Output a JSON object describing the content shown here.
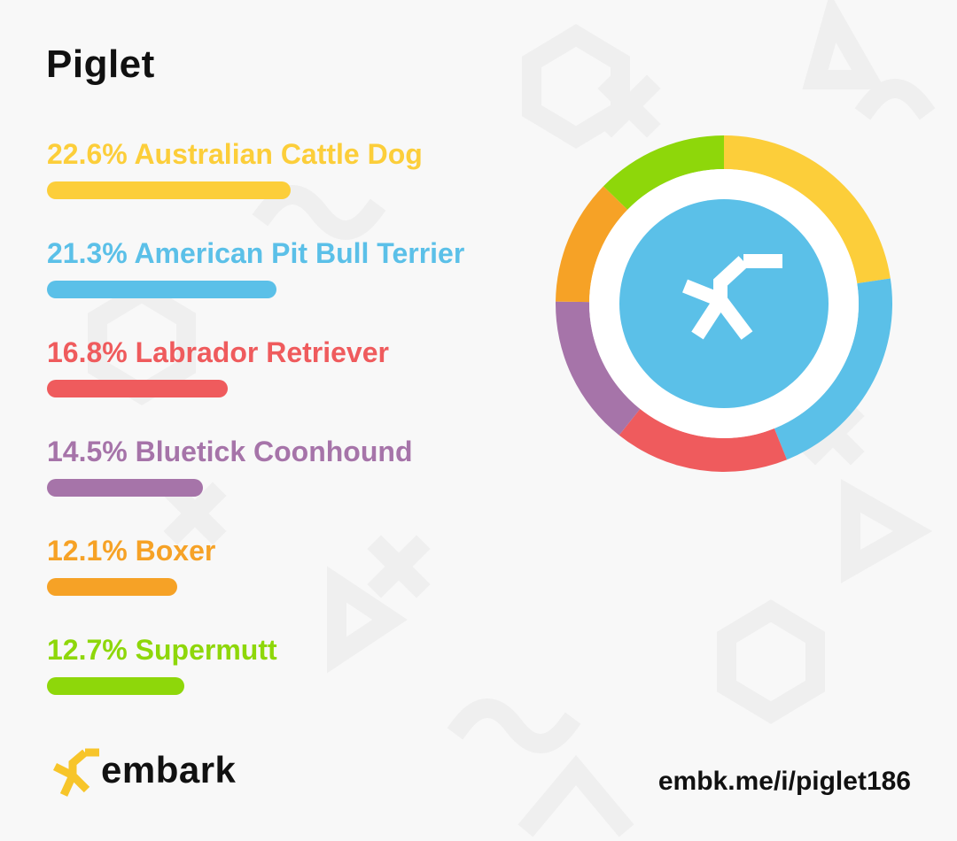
{
  "dog_name": "Piglet",
  "brand": {
    "wordmark": "embark",
    "color": "#f7c52a"
  },
  "share_link": "embk.me/i/piglet186",
  "chart_data": {
    "type": "pie",
    "series": [
      {
        "label": "22.6% Australian Cattle Dog",
        "value": 22.6,
        "color": "#fcce3a"
      },
      {
        "label": "21.3% American Pit Bull Terrier",
        "value": 21.3,
        "color": "#5bc0e8"
      },
      {
        "label": "16.8% Labrador Retriever",
        "value": 16.8,
        "color": "#ef5b5d"
      },
      {
        "label": "14.5% Bluetick Coonhound",
        "value": 14.5,
        "color": "#a674a9"
      },
      {
        "label": "12.1% Boxer",
        "value": 12.1,
        "color": "#f6a226"
      },
      {
        "label": "12.7% Supermutt",
        "value": 12.7,
        "color": "#8ed70a"
      }
    ],
    "center_color": "#5bc0e8"
  }
}
